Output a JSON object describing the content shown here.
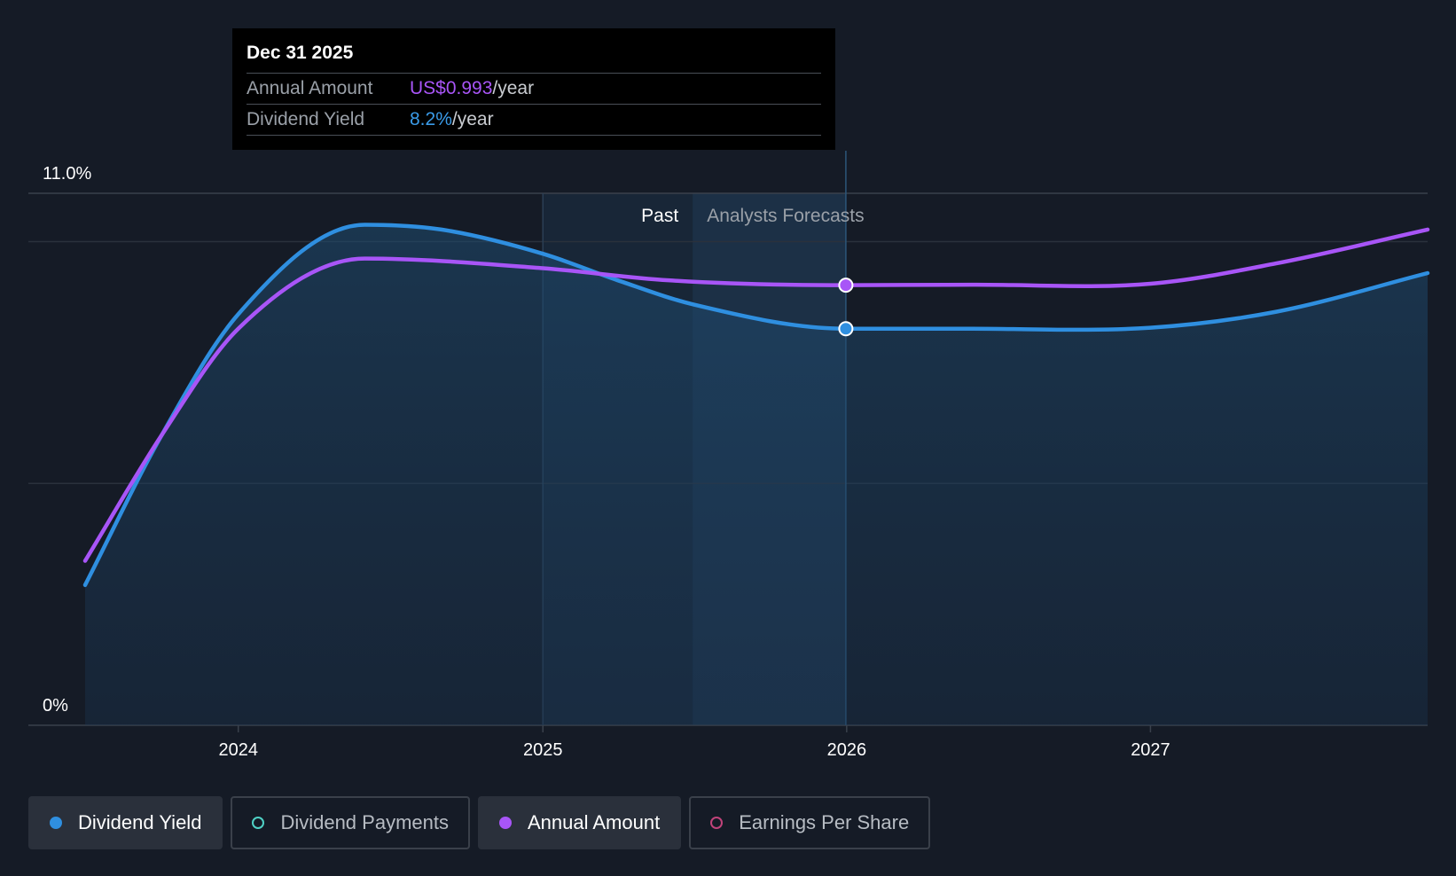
{
  "tooltip": {
    "date": "Dec 31 2025",
    "rows": [
      {
        "label": "Annual Amount",
        "value": "US$0.993",
        "unit": "/year"
      },
      {
        "label": "Dividend Yield",
        "value": "8.2%",
        "unit": "/year"
      }
    ]
  },
  "legend": [
    {
      "label": "Dividend Yield",
      "color": "#2f8fe0",
      "filled": true,
      "active": true
    },
    {
      "label": "Dividend Payments",
      "color": "#4fd1c5",
      "filled": false,
      "active": false
    },
    {
      "label": "Annual Amount",
      "color": "#a855f7",
      "filled": true,
      "active": true
    },
    {
      "label": "Earnings Per Share",
      "color": "#c0437a",
      "filled": false,
      "active": false
    }
  ],
  "chart_data": {
    "type": "line",
    "x_range": [
      "2023-07-01",
      "2027-11-30"
    ],
    "y_range": [
      0,
      11.0
    ],
    "y_ticks": [
      {
        "value": 11.0,
        "label": "11.0%"
      },
      {
        "value": 0,
        "label": "0%"
      }
    ],
    "x_ticks": [
      {
        "date": "2024-01-01",
        "label": "2024"
      },
      {
        "date": "2025-01-01",
        "label": "2025"
      },
      {
        "date": "2026-01-01",
        "label": "2026"
      },
      {
        "date": "2027-01-01",
        "label": "2027"
      }
    ],
    "past_label": "Past",
    "forecast_label": "Analysts Forecasts",
    "past_region_start": "2025-01-01",
    "forecast_start": "2025-06-30",
    "hover_date": "2025-12-31",
    "series": [
      {
        "name": "Dividend Yield",
        "color": "#2f8fe0",
        "points": [
          [
            "2023-07-01",
            2.9
          ],
          [
            "2023-10-01",
            6.0
          ],
          [
            "2024-01-01",
            8.5
          ],
          [
            "2024-06-01",
            10.35
          ],
          [
            "2024-09-01",
            10.25
          ],
          [
            "2025-01-01",
            9.75
          ],
          [
            "2025-04-01",
            9.2
          ],
          [
            "2025-07-01",
            8.7
          ],
          [
            "2025-12-31",
            8.2
          ],
          [
            "2026-06-01",
            8.2
          ],
          [
            "2027-01-01",
            8.22
          ],
          [
            "2027-06-01",
            8.55
          ],
          [
            "2027-11-30",
            9.35
          ]
        ]
      },
      {
        "name": "Annual Amount",
        "color": "#a855f7",
        "points": [
          [
            "2023-07-01",
            3.4
          ],
          [
            "2023-10-01",
            6.0
          ],
          [
            "2024-01-01",
            8.2
          ],
          [
            "2024-06-01",
            9.65
          ],
          [
            "2025-01-01",
            9.45
          ],
          [
            "2025-06-01",
            9.2
          ],
          [
            "2025-12-31",
            9.1
          ],
          [
            "2026-06-01",
            9.11
          ],
          [
            "2027-01-01",
            9.13
          ],
          [
            "2027-06-01",
            9.55
          ],
          [
            "2027-11-30",
            10.25
          ]
        ]
      }
    ]
  }
}
